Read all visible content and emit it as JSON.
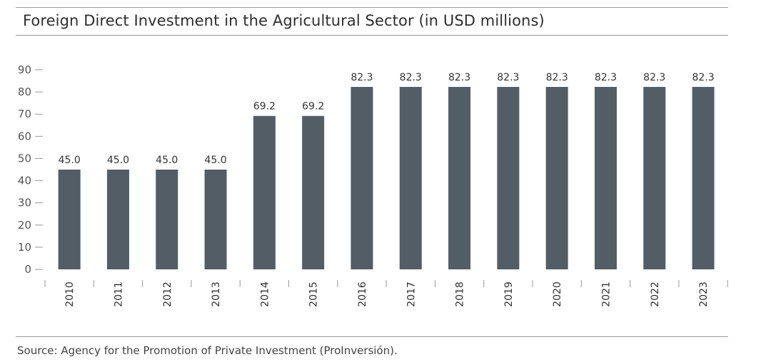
{
  "header": {
    "title": "Foreign Direct Investment in the Agricultural Sector (in USD millions)"
  },
  "footer": {
    "source": "Source: Agency for the Promotion of Private Investment (ProInversión)."
  },
  "colors": {
    "bar": "#535d66",
    "axis": "#9a9a9a"
  },
  "chart_data": {
    "type": "bar",
    "title": "Foreign Direct Investment in the Agricultural Sector (in USD millions)",
    "xlabel": "",
    "ylabel": "",
    "ylim": [
      0,
      90
    ],
    "yticks": [
      0,
      10,
      20,
      30,
      40,
      50,
      60,
      70,
      80,
      90
    ],
    "categories": [
      "2010",
      "2011",
      "2012",
      "2013",
      "2014",
      "2015",
      "2016",
      "2017",
      "2018",
      "2019",
      "2020",
      "2021",
      "2022",
      "2023"
    ],
    "values": [
      45.0,
      45.0,
      45.0,
      45.0,
      69.2,
      69.2,
      82.3,
      82.3,
      82.3,
      82.3,
      82.3,
      82.3,
      82.3,
      82.3
    ],
    "data_labels": [
      "45.0",
      "45.0",
      "45.0",
      "45.0",
      "69.2",
      "69.2",
      "82.3",
      "82.3",
      "82.3",
      "82.3",
      "82.3",
      "82.3",
      "82.3",
      "82.3"
    ],
    "grid": false,
    "legend": "none"
  }
}
